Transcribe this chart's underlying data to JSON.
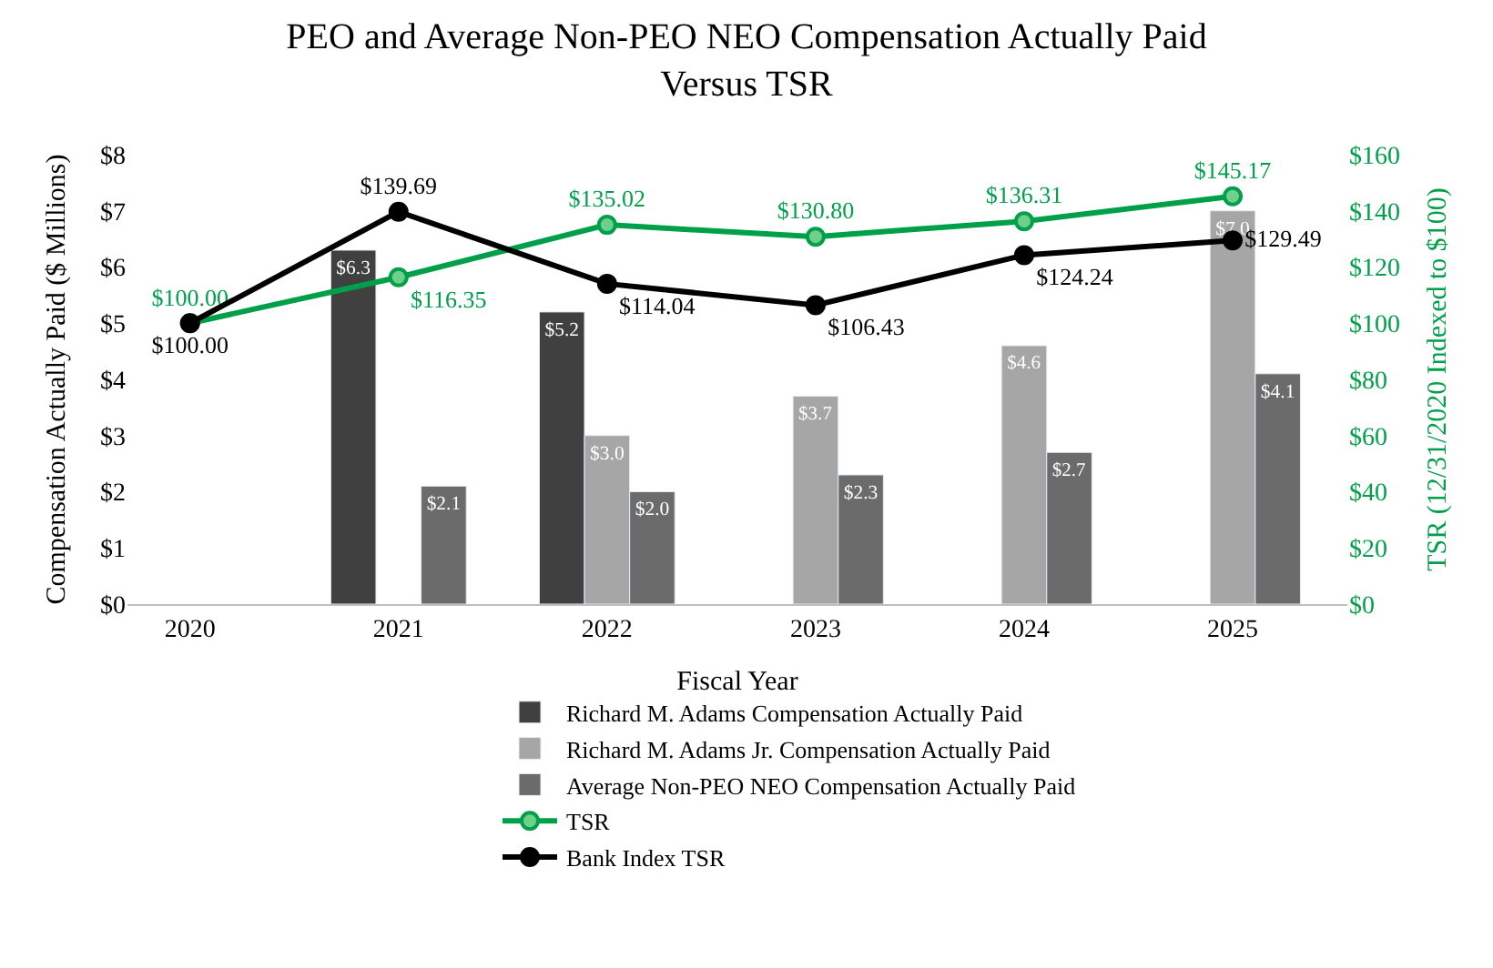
{
  "chart_data": {
    "type": "bar",
    "title": "PEO and Average Non-PEO NEO Compensation Actually Paid\nVersus TSR",
    "xlabel": "Fiscal Year",
    "ylabel": "Compensation Actually Paid ($ Millions)",
    "y2label": "TSR (12/31/2020 Indexed to $100)",
    "categories": [
      "2020",
      "2021",
      "2022",
      "2023",
      "2024",
      "2025"
    ],
    "series": [
      {
        "name": "Richard M. Adams Compensation Actually Paid",
        "color": "#404040",
        "values": [
          null,
          6.3,
          5.2,
          null,
          null,
          null
        ],
        "value_labels": [
          null,
          "$6.3",
          "$5.2",
          null,
          null,
          null
        ]
      },
      {
        "name": "Richard M. Adams Jr. Compensation Actually Paid",
        "color": "#a6a6a6",
        "values": [
          null,
          null,
          3.0,
          3.7,
          4.6,
          7.0
        ],
        "value_labels": [
          null,
          null,
          "$3.0",
          "$3.7",
          "$4.6",
          "$7.0"
        ]
      },
      {
        "name": "Average Non-PEO NEO Compensation Actually Paid",
        "color": "#6b6b6b",
        "values": [
          null,
          2.1,
          2.0,
          2.3,
          2.7,
          4.1
        ],
        "value_labels": [
          null,
          "$2.1",
          "$2.0",
          "$2.3",
          "$2.7",
          "$4.1"
        ]
      },
      {
        "name": "TSR",
        "type": "line",
        "axis": "y2",
        "color": "#00a04a",
        "marker": "circle",
        "values": [
          100.0,
          116.35,
          135.02,
          130.8,
          136.31,
          145.17
        ],
        "value_labels": [
          "$100.00",
          "$116.35",
          "$135.02",
          "$130.80",
          "$136.31",
          "$145.17"
        ]
      },
      {
        "name": "Bank Index TSR",
        "type": "line",
        "axis": "y2",
        "color": "#000000",
        "marker": "circle",
        "values": [
          100.0,
          139.69,
          114.04,
          106.43,
          124.24,
          129.49
        ],
        "value_labels": [
          "$100.00",
          "$139.69",
          "$114.04",
          "$106.43",
          "$124.24",
          "$129.49"
        ]
      }
    ],
    "ylim": [
      0,
      8
    ],
    "yticks": [
      {
        "value": 0,
        "label": "$0"
      },
      {
        "value": 1,
        "label": "$1"
      },
      {
        "value": 2,
        "label": "$2"
      },
      {
        "value": 3,
        "label": "$3"
      },
      {
        "value": 4,
        "label": "$4"
      },
      {
        "value": 5,
        "label": "$5"
      },
      {
        "value": 6,
        "label": "$6"
      },
      {
        "value": 7,
        "label": "$7"
      },
      {
        "value": 8,
        "label": "$8"
      }
    ],
    "y2lim": [
      0,
      160
    ],
    "y2ticks": [
      {
        "value": 0,
        "label": "$0"
      },
      {
        "value": 20,
        "label": "$20"
      },
      {
        "value": 40,
        "label": "$40"
      },
      {
        "value": 60,
        "label": "$60"
      },
      {
        "value": 80,
        "label": "$80"
      },
      {
        "value": 100,
        "label": "$100"
      },
      {
        "value": 120,
        "label": "$120"
      },
      {
        "value": 140,
        "label": "$140"
      },
      {
        "value": 160,
        "label": "$160"
      }
    ],
    "legend": "bottom"
  }
}
